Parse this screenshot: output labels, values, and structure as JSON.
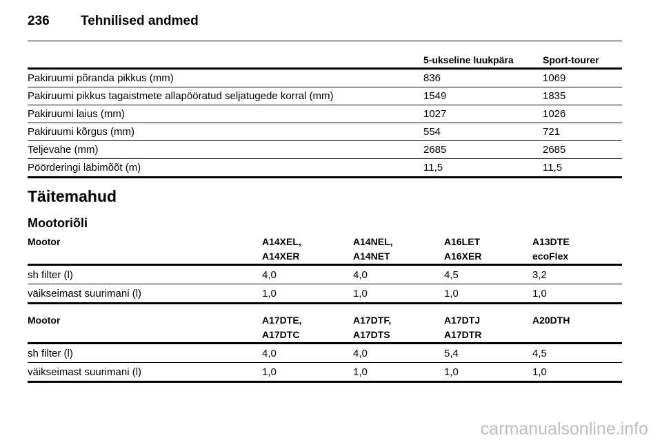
{
  "header": {
    "page_number": "236",
    "title": "Tehnilised andmed"
  },
  "dimensions": {
    "columns": [
      "",
      "5-ukseline luukpära",
      "Sport-tourer"
    ],
    "rows": [
      [
        "Pakiruumi põranda pikkus (mm)",
        "836",
        "1069"
      ],
      [
        "Pakiruumi pikkus tagaistmete allapööratud seljatugede korral (mm)",
        "1549",
        "1835"
      ],
      [
        "Pakiruumi laius (mm)",
        "1027",
        "1026"
      ],
      [
        "Pakiruumi kõrgus (mm)",
        "554",
        "721"
      ],
      [
        "Teljevahe (mm)",
        "2685",
        "2685"
      ],
      [
        "Pöörderingi läbimõõt (m)",
        "11,5",
        "11,5"
      ]
    ]
  },
  "capacities": {
    "title": "Täitemahud",
    "subtitle": "Mootoriõli",
    "table1": {
      "header_label": "Mootor",
      "engines": [
        [
          "A14XEL,",
          "A14XER"
        ],
        [
          "A14NEL,",
          "A14NET"
        ],
        [
          "A16LET",
          "A16XER"
        ],
        [
          "A13DTE",
          "ecoFlex"
        ]
      ],
      "rows": [
        [
          "sh filter (l)",
          "4,0",
          "4,0",
          "4,5",
          "3,2"
        ],
        [
          "väikseimast suurimani (l)",
          "1,0",
          "1,0",
          "1,0",
          "1,0"
        ]
      ]
    },
    "table2": {
      "header_label": "Mootor",
      "engines": [
        [
          "A17DTE,",
          "A17DTC"
        ],
        [
          "A17DTF,",
          "A17DTS"
        ],
        [
          "A17DTJ",
          "A17DTR"
        ],
        [
          "A20DTH",
          ""
        ]
      ],
      "rows": [
        [
          "sh filter (l)",
          "4,0",
          "4,0",
          "5,4",
          "4,5"
        ],
        [
          "väikseimast suurimani (l)",
          "1,0",
          "1,0",
          "1,0",
          "1,0"
        ]
      ]
    }
  },
  "watermark": "carmanualsonline.info"
}
